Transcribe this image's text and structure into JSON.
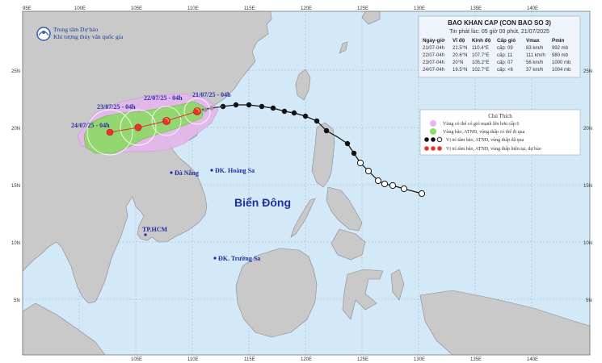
{
  "agency": {
    "line1": "Trung tâm Dự báo",
    "line2": "Khí tượng thủy văn quốc gia"
  },
  "bulletin": {
    "title": "BAO KHAN CAP  (CON BAO SO 3)",
    "issued": "Tin phát lúc: 05 giờ 00 phút, 21/07/2025",
    "headers": [
      "Ngày-giờ",
      "Vĩ độ",
      "Kinh độ",
      "Cấp gió",
      "Vmax",
      "Pmin"
    ],
    "rows": [
      [
        "21/07-04h",
        "21.5°N",
        "110.4°E",
        "cấp: 09",
        "83 km/h",
        "992 mb"
      ],
      [
        "22/07-04h",
        "20.6°N",
        "107.7°E",
        "cấp: 11",
        "111 km/h",
        "980 mb"
      ],
      [
        "23/07-04h",
        "20°N",
        "105.2°E",
        "cấp: 07",
        "56 km/h",
        "1000 mb"
      ],
      [
        "24/07-04h",
        "19.5°N",
        "102.7°E",
        "cấp: <6",
        "37 km/h",
        "1004 mb"
      ]
    ]
  },
  "legend": {
    "title": "Chú Thích",
    "items": [
      "Vùng có thể có gió mạnh lên hơn cấp 6",
      "Vùng bão, ATNĐ, vùng thấp có thể đi qua",
      "Vị trí tâm bão, ATNĐ, vùng thấp đã qua",
      "Vị trí tâm bão, ATNĐ, vùng thấp hiện tại, dự báo"
    ]
  },
  "track_labels": [
    "21/07/25 - 04h",
    "22/07/25 - 04h",
    "23/07/25 - 04h",
    "24/07/25 - 04h"
  ],
  "places": {
    "danang": "Đà Nẵng",
    "hoangsa": "ĐK. Hoàng Sa",
    "hcm": "TP.HCM",
    "truongsa": "ĐK. Trường Sa",
    "sea": "Biển Đông"
  },
  "axes": {
    "lon_top": [
      "95E",
      "100E",
      "105E",
      "110E",
      "115E",
      "120E",
      "125E",
      "130E",
      "135E",
      "140E"
    ],
    "lon_bottom": [
      "105E",
      "110E",
      "115E",
      "120E",
      "125E",
      "130E",
      "135E",
      "140E"
    ],
    "lat_left": [
      "25N",
      "20N",
      "15N",
      "10N",
      "5N"
    ],
    "lat_right": [
      "25N",
      "20N",
      "15N",
      "10N",
      "5N"
    ]
  },
  "colors": {
    "ocean": "#d3e9f7",
    "land": "#c9c9c9",
    "strong_wind_zone": "#e3b6ea",
    "danger_zone": "#8fd86a",
    "past_track": "#111111",
    "forecast_center": "#e8322e"
  }
}
